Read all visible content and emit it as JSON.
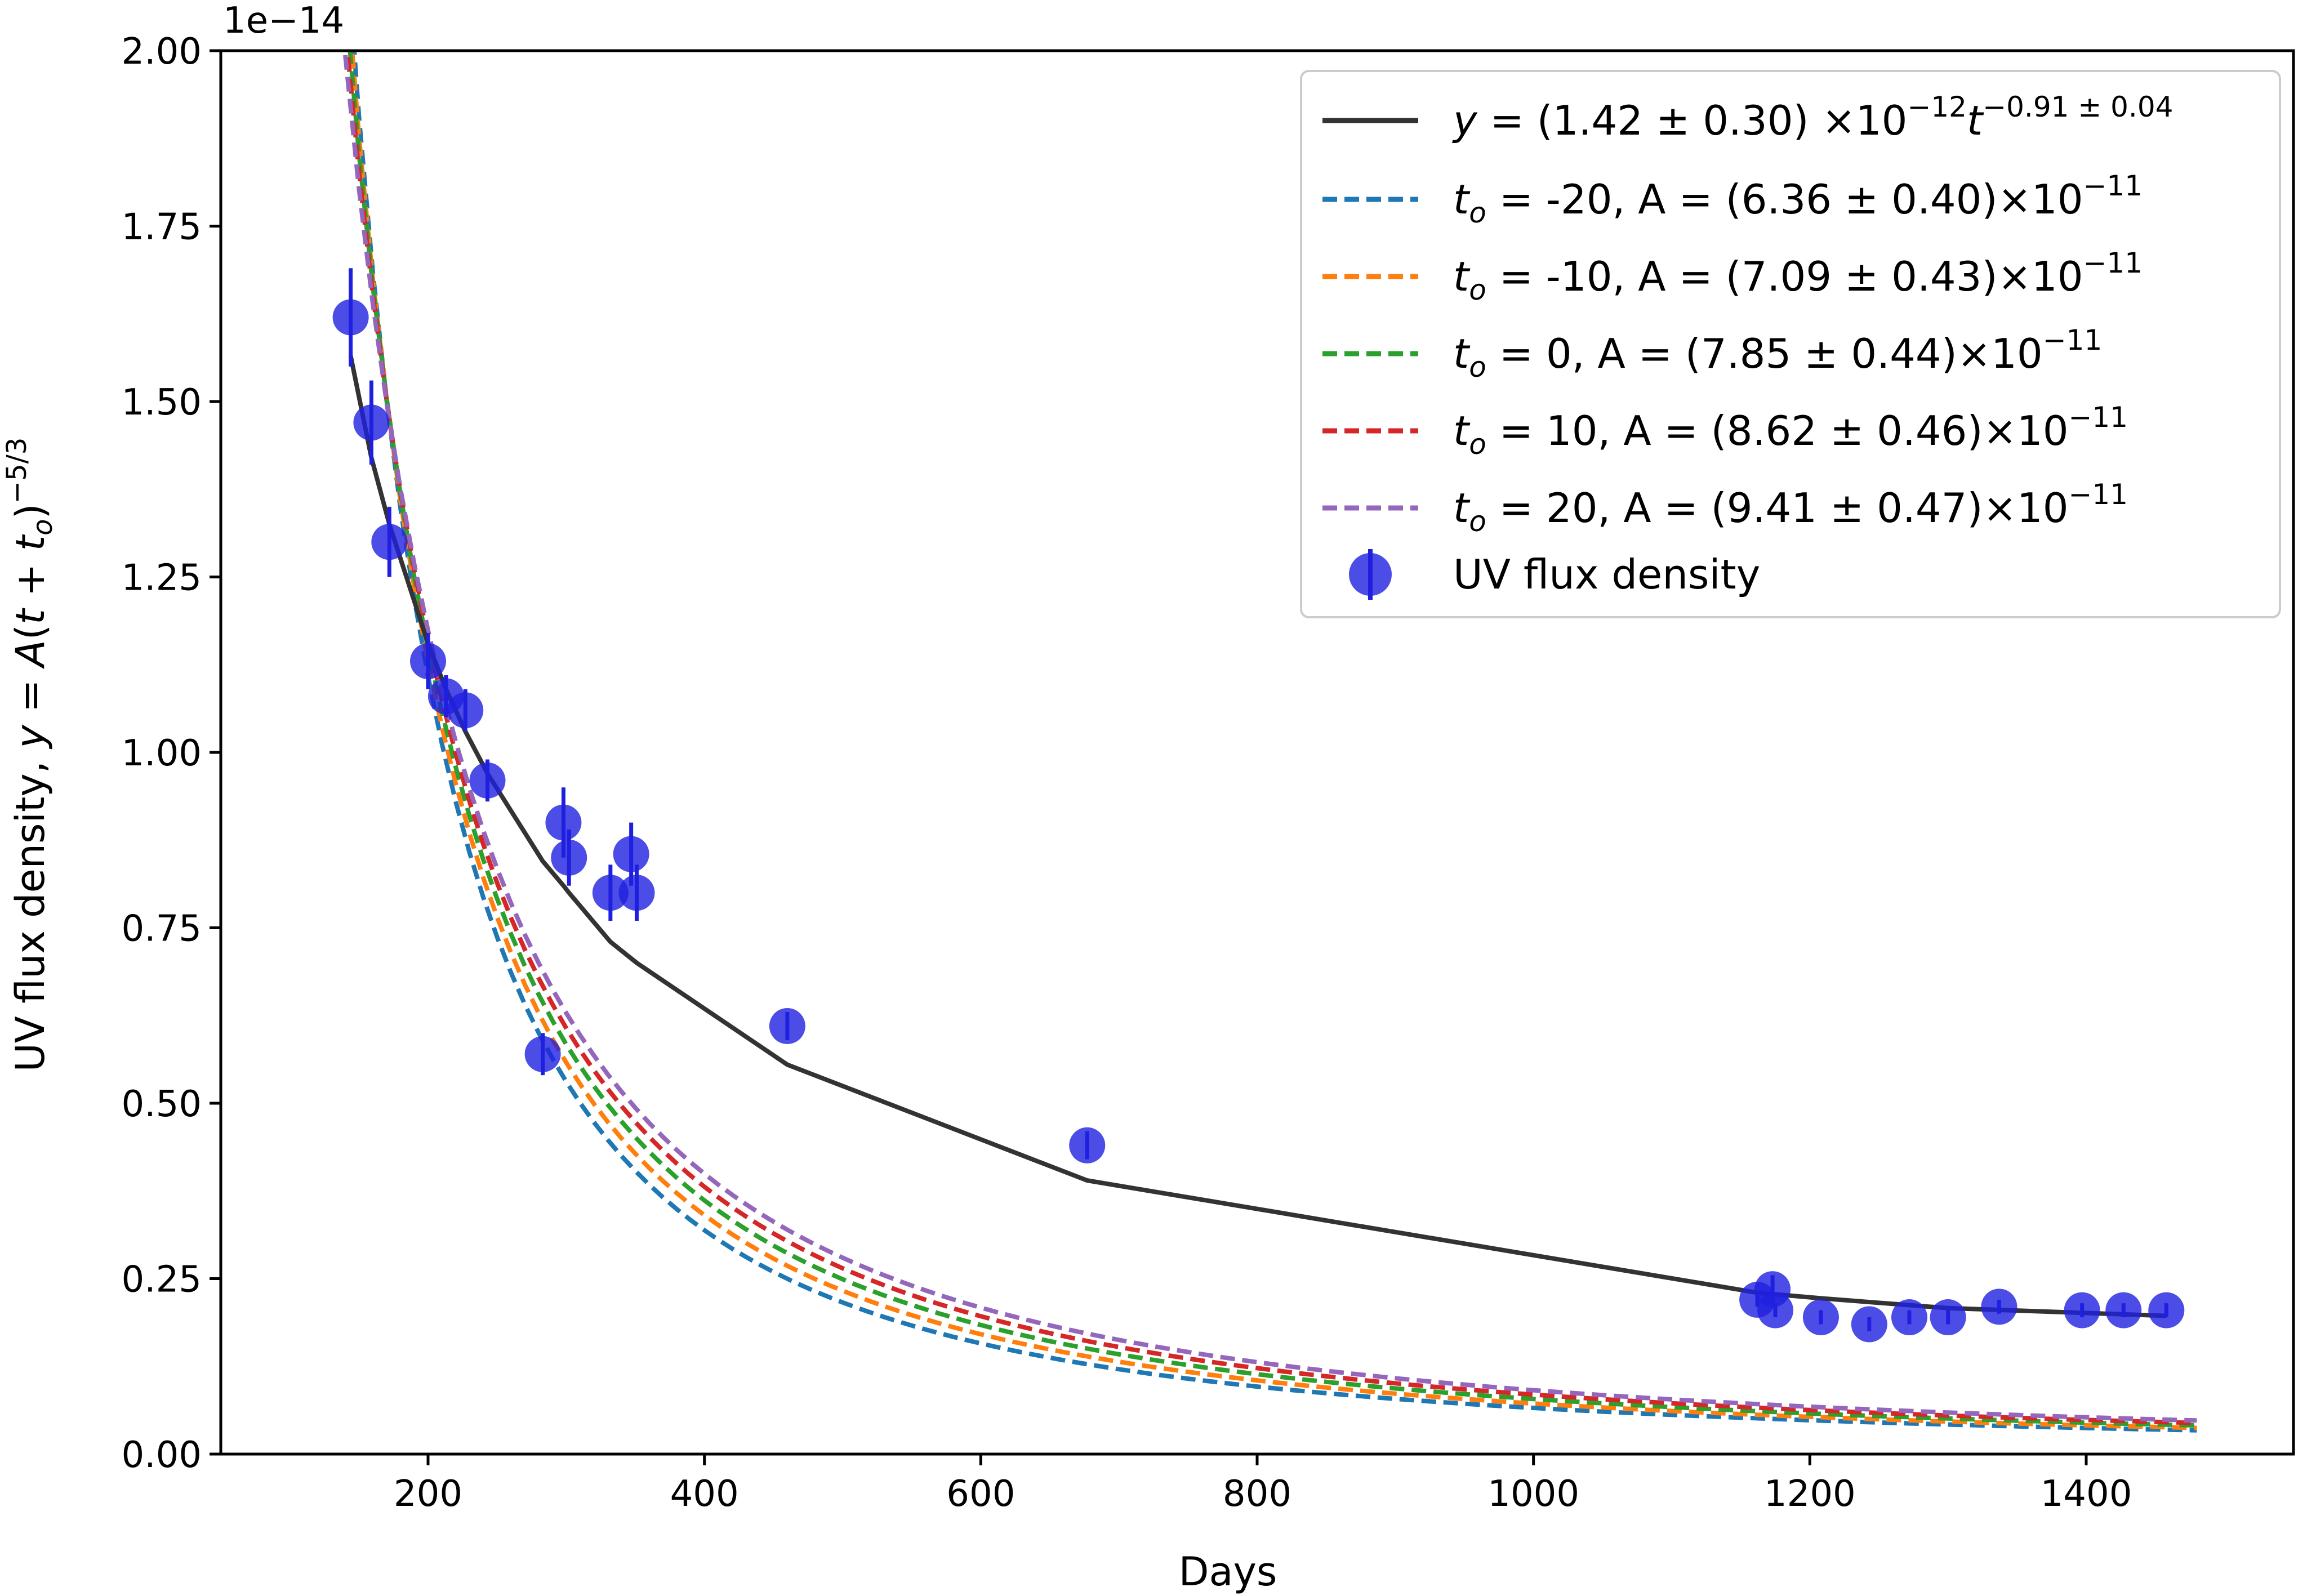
{
  "chart_data": {
    "type": "scatter",
    "title": "",
    "xlabel": "Days",
    "ylabel_prefix": "UV flux density, ",
    "ylabel_math": "y = A(t + t_o)^{-5/3}",
    "offset_label": "1e−14",
    "xlim": [
      50,
      1550
    ],
    "ylim": [
      0.0,
      2.0
    ],
    "x_ticks": [
      "200",
      "400",
      "600",
      "800",
      "1000",
      "1200",
      "1400"
    ],
    "x_tick_values": [
      200,
      400,
      600,
      800,
      1000,
      1200,
      1400
    ],
    "y_ticks": [
      "0.00",
      "0.25",
      "0.50",
      "0.75",
      "1.00",
      "1.25",
      "1.50",
      "1.75",
      "2.00"
    ],
    "y_tick_values": [
      0,
      0.25,
      0.5,
      0.75,
      1.0,
      1.25,
      1.5,
      1.75,
      2.0
    ],
    "legend_position": "top-right",
    "points": {
      "name": "UV flux density",
      "color": "#1f1fe0",
      "x": [
        144,
        159,
        172,
        200,
        213,
        227,
        243,
        283,
        298,
        302,
        332,
        347,
        351,
        460,
        677,
        1162,
        1173,
        1175,
        1208,
        1243,
        1272,
        1300,
        1337,
        1397,
        1427,
        1458
      ],
      "y": [
        1.62,
        1.47,
        1.3,
        1.13,
        1.08,
        1.06,
        0.96,
        0.57,
        0.9,
        0.85,
        0.8,
        0.855,
        0.8,
        0.61,
        0.44,
        0.22,
        0.235,
        0.205,
        0.195,
        0.185,
        0.195,
        0.195,
        0.21,
        0.205,
        0.205,
        0.205
      ],
      "yerr": [
        0.07,
        0.06,
        0.05,
        0.04,
        0.03,
        0.03,
        0.03,
        0.03,
        0.05,
        0.04,
        0.04,
        0.045,
        0.04,
        0.02,
        0.02,
        0.01,
        0.02,
        0.01,
        0.01,
        0.01,
        0.01,
        0.01,
        0.01,
        0.01,
        0.01,
        0.01
      ]
    },
    "power_law_fit": {
      "label_pre": "y",
      "label_mid": " = (1.42 ± 0.30) ×10",
      "label_exp1": "−12",
      "label_t": "t",
      "label_exp2": "−0.91 ± 0.04",
      "color": "#333333",
      "x": [
        144,
        159,
        172,
        200,
        213,
        227,
        243,
        283,
        298,
        302,
        332,
        351,
        460,
        677,
        1162,
        1208,
        1300,
        1458
      ],
      "y": [
        1.565,
        1.42,
        1.325,
        1.155,
        1.09,
        1.03,
        0.97,
        0.845,
        0.81,
        0.8,
        0.73,
        0.7,
        0.555,
        0.39,
        0.23,
        0.222,
        0.208,
        0.197
      ]
    },
    "tdes_fits": [
      {
        "to_label": "-20",
        "label": ", A = (6.36 ± 0.40)×10",
        "exp": "−11",
        "color": "#1f77b4",
        "A": 6.36e-11,
        "t_o": -20
      },
      {
        "to_label": "-10",
        "label": ", A = (7.09 ±  0.43)×10",
        "exp": "−11",
        "color": "#ff7f0e",
        "A": 7.09e-11,
        "t_o": -10
      },
      {
        "to_label": "0",
        "label": ", A = (7.85 ±  0.44)×10",
        "exp": "−11",
        "color": "#2ca02c",
        "A": 7.85e-11,
        "t_o": 0
      },
      {
        "to_label": "10",
        "label": ", A = (8.62 ±  0.46)×10",
        "exp": "−11",
        "color": "#d62728",
        "A": 8.62e-11,
        "t_o": 10
      },
      {
        "to_label": "20",
        "label": ", A = (9.41 ±  0.47)×10",
        "exp": "−11",
        "color": "#9467bd",
        "A": 9.41e-11,
        "t_o": 20
      }
    ]
  }
}
